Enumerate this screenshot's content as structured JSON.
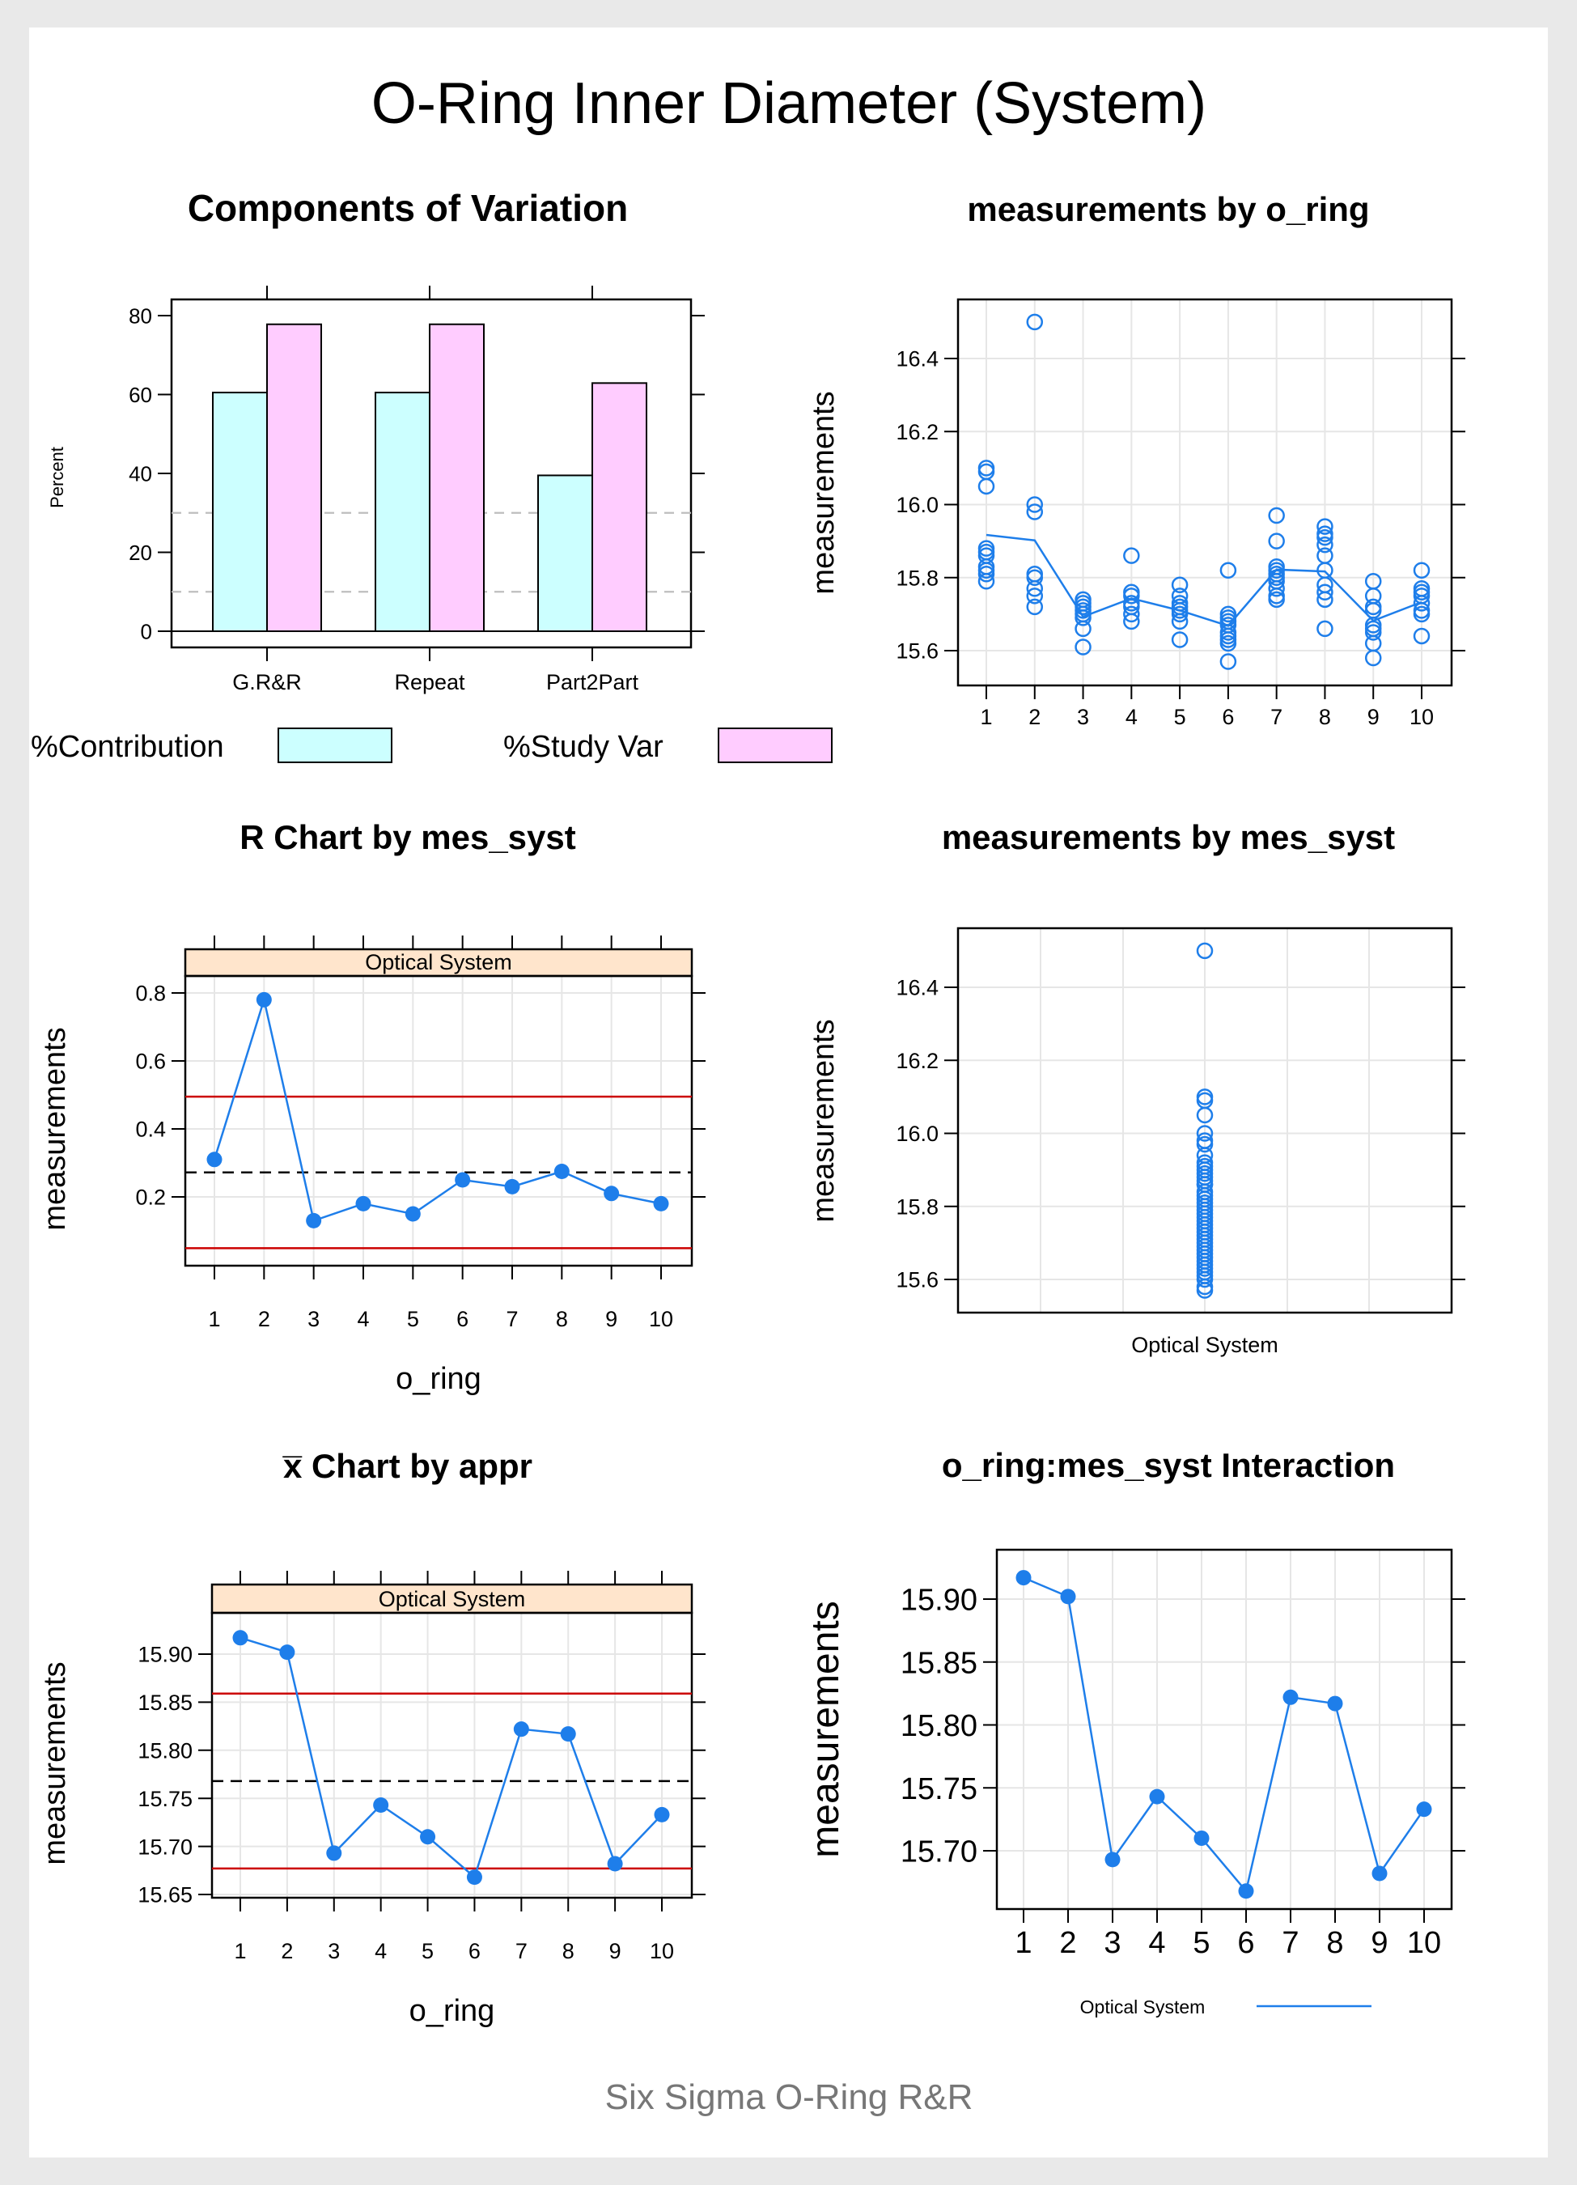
{
  "main_title": "O-Ring Inner Diameter (System)",
  "footer": "Six Sigma O-Ring R&R",
  "colors": {
    "blue": "#1E7EEA",
    "cyan_fill": "#CCFFFF",
    "pink_fill": "#FFCCFF",
    "strip": "#FFE5CC",
    "limit_red": "#CC0000",
    "grid": "#E6E6E6",
    "ref_gray": "#BEBEBE"
  },
  "chart_data": [
    {
      "id": "components",
      "type": "bar",
      "title": "Components of Variation",
      "ylabel": "Percent",
      "categories": [
        "G.R&R",
        "Repeat",
        "Part2Part"
      ],
      "series": [
        {
          "name": "%Contribution",
          "values": [
            60.5,
            60.5,
            39.5
          ],
          "color": "#CCFFFF"
        },
        {
          "name": "%Study Var",
          "values": [
            77.8,
            77.8,
            62.9
          ],
          "color": "#FFCCFF"
        }
      ],
      "yticks": [
        0,
        20,
        40,
        60,
        80
      ],
      "reference_lines": [
        10,
        30
      ],
      "legend": "bottom"
    },
    {
      "id": "by_oring",
      "type": "scatter",
      "title": "measurements by o_ring",
      "ylabel": "measurements",
      "x": [
        1,
        2,
        3,
        4,
        5,
        6,
        7,
        8,
        9,
        10
      ],
      "xticks": [
        "1",
        "2",
        "3",
        "4",
        "5",
        "6",
        "7",
        "8",
        "9",
        "10"
      ],
      "points": [
        [
          16.1,
          16.09,
          16.05,
          15.88,
          15.87,
          15.86,
          15.83,
          15.82,
          15.81,
          15.79
        ],
        [
          16.5,
          16.0,
          15.98,
          15.81,
          15.8,
          15.77,
          15.75,
          15.72
        ],
        [
          15.74,
          15.73,
          15.72,
          15.71,
          15.7,
          15.69,
          15.66,
          15.61
        ],
        [
          15.86,
          15.76,
          15.75,
          15.73,
          15.72,
          15.7,
          15.68
        ],
        [
          15.78,
          15.75,
          15.73,
          15.72,
          15.71,
          15.7,
          15.68,
          15.63
        ],
        [
          15.82,
          15.7,
          15.69,
          15.68,
          15.67,
          15.65,
          15.64,
          15.63,
          15.62,
          15.57
        ],
        [
          15.97,
          15.9,
          15.83,
          15.82,
          15.81,
          15.8,
          15.79,
          15.77,
          15.75,
          15.74
        ],
        [
          15.94,
          15.92,
          15.91,
          15.89,
          15.86,
          15.82,
          15.78,
          15.76,
          15.74,
          15.66
        ],
        [
          15.79,
          15.75,
          15.72,
          15.71,
          15.67,
          15.66,
          15.65,
          15.62,
          15.58
        ],
        [
          15.82,
          15.77,
          15.76,
          15.75,
          15.73,
          15.71,
          15.7,
          15.64
        ]
      ],
      "mean_line": [
        15.917,
        15.902,
        15.693,
        15.743,
        15.71,
        15.668,
        15.822,
        15.817,
        15.682,
        15.733
      ],
      "yticks": [
        15.6,
        15.8,
        16.0,
        16.2,
        16.4
      ]
    },
    {
      "id": "r_chart",
      "type": "line",
      "title": "R Chart by mes_syst",
      "strip": "Optical System",
      "xlabel": "o_ring",
      "ylabel": "measurements",
      "x": [
        1,
        2,
        3,
        4,
        5,
        6,
        7,
        8,
        9,
        10
      ],
      "xticks": [
        "1",
        "2",
        "3",
        "4",
        "5",
        "6",
        "7",
        "8",
        "9",
        "10"
      ],
      "values": [
        0.31,
        0.78,
        0.13,
        0.18,
        0.15,
        0.25,
        0.23,
        0.275,
        0.21,
        0.18
      ],
      "center_line": 0.272,
      "ucl": 0.495,
      "lcl": 0.049,
      "yticks": [
        0.2,
        0.4,
        0.6,
        0.8
      ]
    },
    {
      "id": "by_syst",
      "type": "scatter",
      "title": "measurements by mes_syst",
      "ylabel": "measurements",
      "categories": [
        "Optical System"
      ],
      "values": [
        16.5,
        16.1,
        16.09,
        16.05,
        16.0,
        15.98,
        15.97,
        15.94,
        15.92,
        15.91,
        15.9,
        15.89,
        15.88,
        15.87,
        15.86,
        15.86,
        15.84,
        15.83,
        15.82,
        15.81,
        15.8,
        15.79,
        15.78,
        15.77,
        15.76,
        15.75,
        15.74,
        15.73,
        15.72,
        15.71,
        15.7,
        15.69,
        15.68,
        15.67,
        15.66,
        15.65,
        15.64,
        15.63,
        15.62,
        15.61,
        15.6,
        15.58,
        15.57
      ],
      "yticks": [
        15.6,
        15.8,
        16.0,
        16.2,
        16.4
      ]
    },
    {
      "id": "xbar_chart",
      "type": "line",
      "title": "x̅ Chart by appr",
      "strip": "Optical System",
      "xlabel": "o_ring",
      "ylabel": "measurements",
      "x": [
        1,
        2,
        3,
        4,
        5,
        6,
        7,
        8,
        9,
        10
      ],
      "xticks": [
        "1",
        "2",
        "3",
        "4",
        "5",
        "6",
        "7",
        "8",
        "9",
        "10"
      ],
      "values": [
        15.917,
        15.902,
        15.693,
        15.743,
        15.71,
        15.668,
        15.822,
        15.817,
        15.682,
        15.733
      ],
      "center_line": 15.768,
      "ucl": 15.859,
      "lcl": 15.677,
      "yticks": [
        "15.65",
        "15.70",
        "15.75",
        "15.80",
        "15.85",
        "15.90"
      ]
    },
    {
      "id": "interaction",
      "type": "line",
      "title": "o_ring:mes_syst Interaction",
      "ylabel": "measurements",
      "x": [
        1,
        2,
        3,
        4,
        5,
        6,
        7,
        8,
        9,
        10
      ],
      "xticks": [
        "1",
        "2",
        "3",
        "4",
        "5",
        "6",
        "7",
        "8",
        "9",
        "10"
      ],
      "series": [
        {
          "name": "Optical System",
          "values": [
            15.917,
            15.902,
            15.693,
            15.743,
            15.71,
            15.668,
            15.822,
            15.817,
            15.682,
            15.733
          ]
        }
      ],
      "yticks": [
        "15.70",
        "15.75",
        "15.80",
        "15.85",
        "15.90"
      ],
      "legend": "bottom"
    }
  ]
}
